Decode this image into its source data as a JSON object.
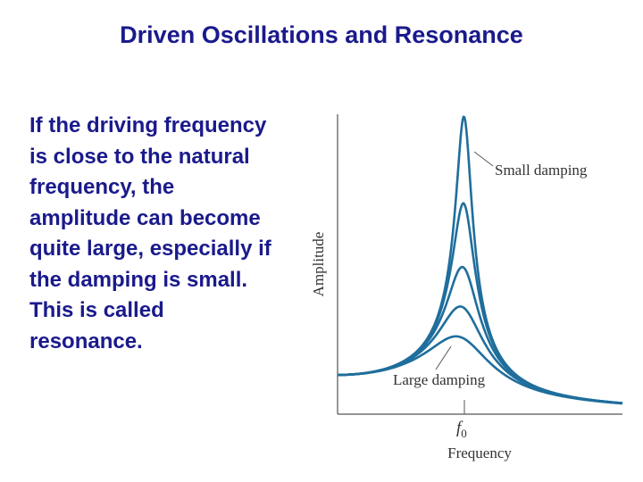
{
  "header": {
    "title": "Driven Oscillations and Resonance"
  },
  "body": {
    "lines": [
      "If the driving frequency",
      "is close to the natural",
      "frequency, the",
      "amplitude can become",
      "quite large, especially if",
      "the damping is small.",
      "This is called",
      "resonance."
    ]
  },
  "figure": {
    "y_axis_label": "Amplitude",
    "x_axis_label": "Frequency",
    "tick_label": {
      "symbol": "f",
      "subscript": "0"
    },
    "annotations": [
      "Small damping",
      "Large damping"
    ]
  }
}
